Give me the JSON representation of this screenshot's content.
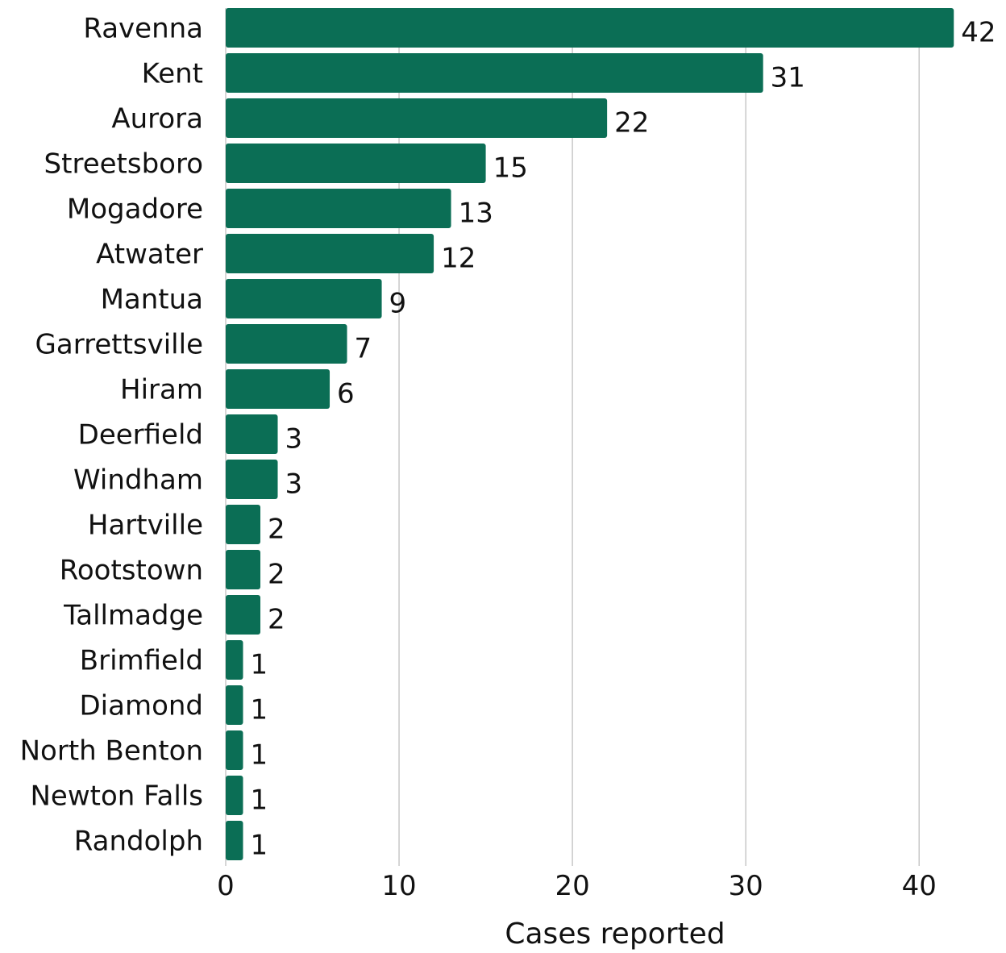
{
  "chart_data": {
    "type": "bar",
    "orientation": "horizontal",
    "categories": [
      "Ravenna",
      "Kent",
      "Aurora",
      "Streetsboro",
      "Mogadore",
      "Atwater",
      "Mantua",
      "Garrettsville",
      "Hiram",
      "Deerfield",
      "Windham",
      "Hartville",
      "Rootstown",
      "Tallmadge",
      "Brimfield",
      "Diamond",
      "North Benton",
      "Newton Falls",
      "Randolph"
    ],
    "values": [
      42,
      31,
      22,
      15,
      13,
      12,
      9,
      7,
      6,
      3,
      3,
      2,
      2,
      2,
      1,
      1,
      1,
      1,
      1
    ],
    "data_labels": [
      "42",
      "31",
      "22",
      "15",
      "13",
      "12",
      "9",
      "7",
      "6",
      "3",
      "3",
      "2",
      "2",
      "2",
      "1",
      "1",
      "1",
      "1",
      "1"
    ],
    "title": "",
    "xlabel": "Cases reported",
    "ylabel": "",
    "xlim": [
      0,
      42.5
    ],
    "xticks": [
      0,
      10,
      20,
      30,
      40
    ],
    "xtick_labels": [
      "0",
      "10",
      "20",
      "30",
      "40"
    ],
    "grid": "vertical",
    "legend": "none",
    "colors": {
      "bar": "#0b6e55",
      "grid": "#c8c8c8",
      "text": "#111111"
    }
  }
}
